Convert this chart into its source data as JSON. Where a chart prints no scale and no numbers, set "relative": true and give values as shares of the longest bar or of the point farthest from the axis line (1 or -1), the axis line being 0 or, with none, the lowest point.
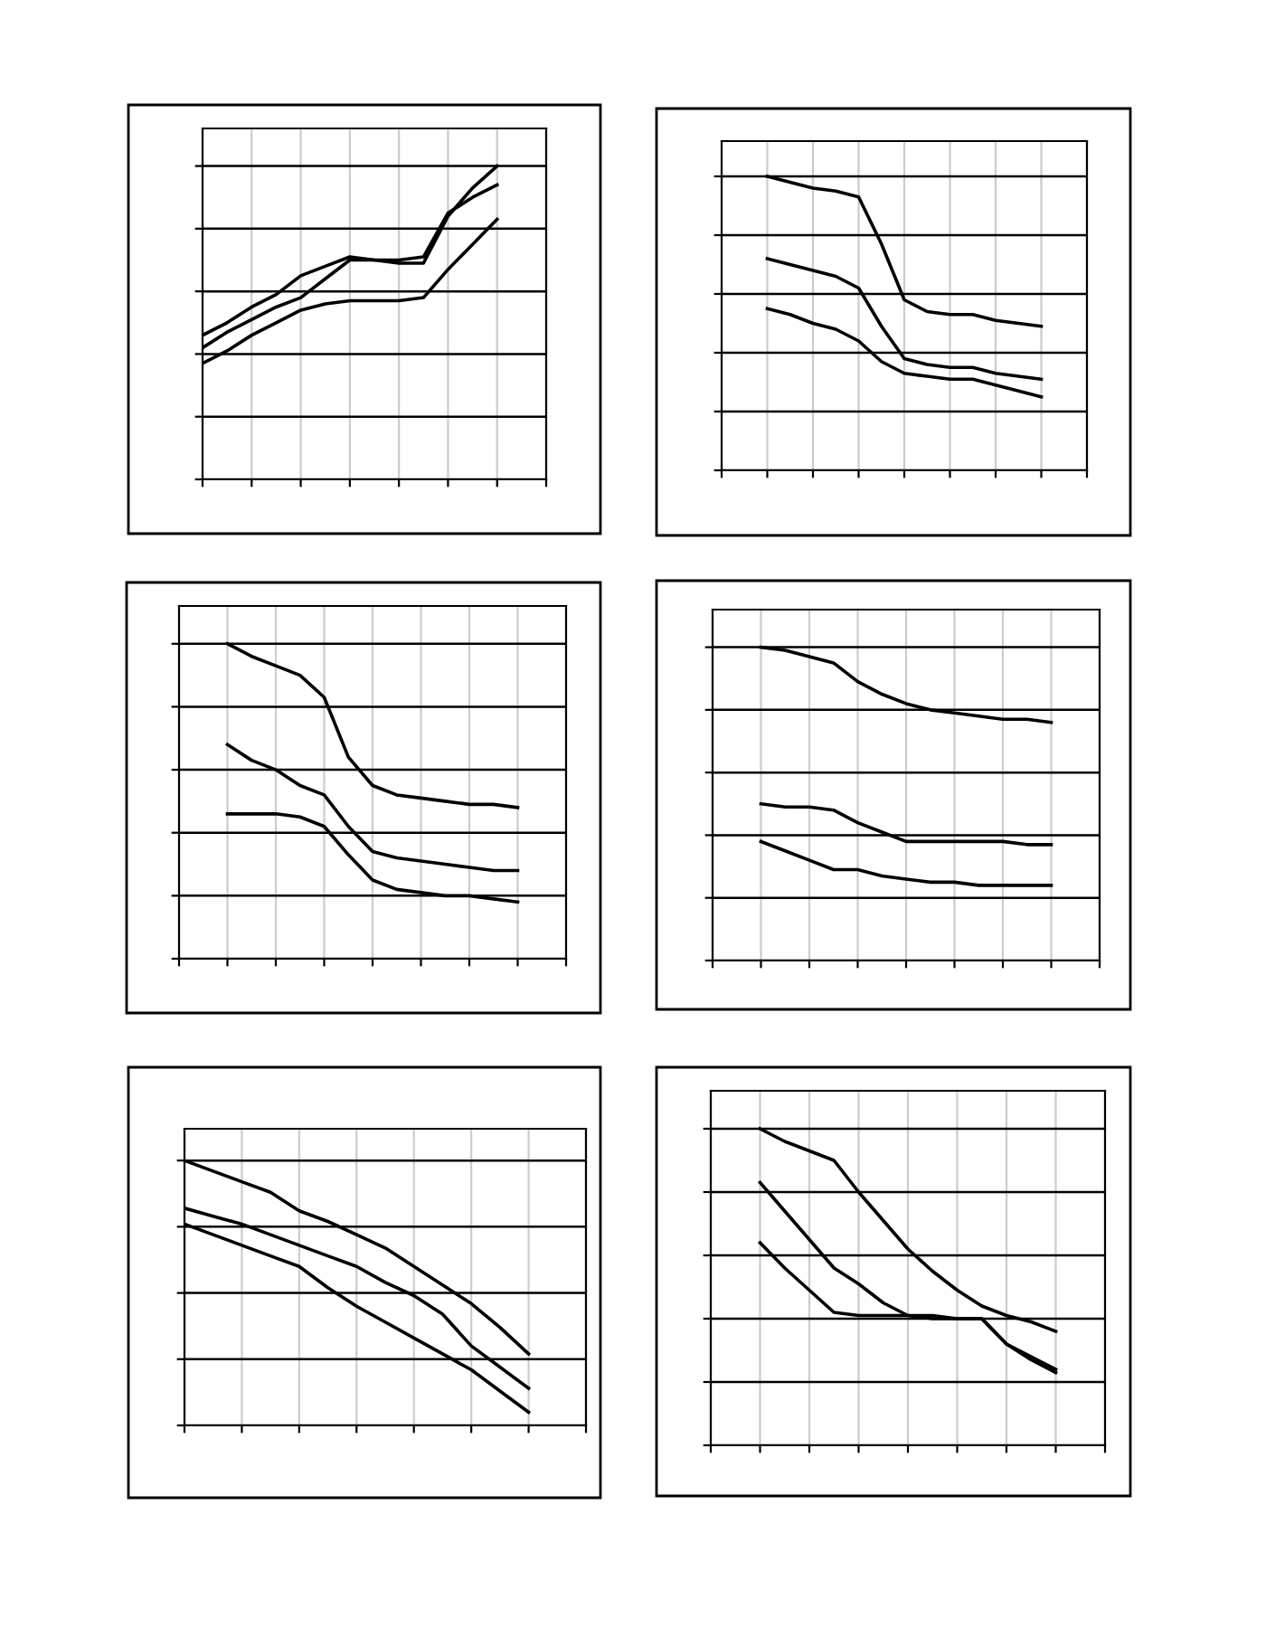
{
  "chart_data": [
    {
      "type": "line",
      "relative": true,
      "grid": true,
      "tick_labels": false,
      "categories": [
        null,
        null,
        null,
        null,
        null,
        null,
        null,
        null,
        null,
        null,
        null,
        null,
        null,
        null,
        null
      ],
      "series": [
        {
          "color": "#000000",
          "values": [
            0.46,
            0.5,
            0.55,
            0.59,
            0.65,
            0.68,
            0.71,
            0.7,
            0.7,
            0.71,
            0.85,
            0.9,
            0.94,
            null,
            null
          ]
        },
        {
          "color": "#000000",
          "values": [
            0.42,
            0.47,
            0.51,
            0.55,
            0.58,
            0.64,
            0.7,
            0.7,
            0.69,
            0.69,
            0.84,
            0.93,
            1.0,
            null,
            null
          ]
        },
        {
          "color": "#000000",
          "values": [
            0.37,
            0.41,
            0.46,
            0.5,
            0.54,
            0.56,
            0.57,
            0.57,
            0.57,
            0.58,
            0.67,
            0.75,
            0.83,
            null,
            null
          ]
        }
      ]
    },
    {
      "type": "line",
      "relative": true,
      "grid": true,
      "tick_labels": false,
      "categories": [
        null,
        null,
        null,
        null,
        null,
        null,
        null,
        null,
        null,
        null,
        null,
        null,
        null,
        null,
        null,
        null,
        null
      ],
      "series": [
        {
          "color": "#000000",
          "values": [
            null,
            null,
            1.0,
            0.98,
            0.96,
            0.95,
            0.93,
            0.77,
            0.58,
            0.54,
            0.53,
            0.53,
            0.51,
            0.5,
            0.49,
            null,
            null
          ]
        },
        {
          "color": "#000000",
          "values": [
            null,
            null,
            0.72,
            0.7,
            0.68,
            0.66,
            0.62,
            0.49,
            0.38,
            0.36,
            0.35,
            0.35,
            0.33,
            0.32,
            0.31,
            null,
            null
          ]
        },
        {
          "color": "#000000",
          "values": [
            null,
            null,
            0.55,
            0.53,
            0.5,
            0.48,
            0.44,
            0.37,
            0.33,
            0.32,
            0.31,
            0.31,
            0.29,
            0.27,
            0.25,
            null,
            null
          ]
        }
      ]
    },
    {
      "type": "line",
      "relative": true,
      "grid": true,
      "tick_labels": false,
      "categories": [
        null,
        null,
        null,
        null,
        null,
        null,
        null,
        null,
        null,
        null,
        null,
        null,
        null,
        null,
        null,
        null,
        null
      ],
      "series": [
        {
          "color": "#000000",
          "values": [
            null,
            null,
            1.0,
            0.96,
            0.93,
            0.9,
            0.83,
            0.64,
            0.55,
            0.52,
            0.51,
            0.5,
            0.49,
            0.49,
            0.48,
            null,
            null
          ]
        },
        {
          "color": "#000000",
          "values": [
            null,
            null,
            0.68,
            0.63,
            0.6,
            0.55,
            0.52,
            0.42,
            0.34,
            0.32,
            0.31,
            0.3,
            0.29,
            0.28,
            0.28,
            null,
            null
          ]
        },
        {
          "color": "#000000",
          "values": [
            null,
            null,
            0.46,
            0.46,
            0.46,
            0.45,
            0.42,
            0.33,
            0.25,
            0.22,
            0.21,
            0.2,
            0.2,
            0.19,
            0.18,
            null,
            null
          ]
        }
      ]
    },
    {
      "type": "line",
      "relative": true,
      "grid": true,
      "tick_labels": false,
      "categories": [
        null,
        null,
        null,
        null,
        null,
        null,
        null,
        null,
        null,
        null,
        null,
        null,
        null,
        null,
        null,
        null,
        null
      ],
      "series": [
        {
          "color": "#000000",
          "values": [
            null,
            null,
            1.0,
            0.99,
            0.97,
            0.95,
            0.89,
            0.85,
            0.82,
            0.8,
            0.79,
            0.78,
            0.77,
            0.77,
            0.76,
            null,
            null
          ]
        },
        {
          "color": "#000000",
          "values": [
            null,
            null,
            0.5,
            0.49,
            0.49,
            0.48,
            0.44,
            0.41,
            0.38,
            0.38,
            0.38,
            0.38,
            0.38,
            0.37,
            0.37,
            null,
            null
          ]
        },
        {
          "color": "#000000",
          "values": [
            null,
            null,
            0.38,
            0.35,
            0.32,
            0.29,
            0.29,
            0.27,
            0.26,
            0.25,
            0.25,
            0.24,
            0.24,
            0.24,
            0.24,
            null,
            null
          ]
        }
      ]
    },
    {
      "type": "line",
      "relative": true,
      "grid": true,
      "tick_labels": false,
      "categories": [
        null,
        null,
        null,
        null,
        null,
        null,
        null,
        null,
        null,
        null,
        null,
        null,
        null,
        null,
        null
      ],
      "series": [
        {
          "color": "#000000",
          "values": [
            1.0,
            0.96,
            0.92,
            0.88,
            0.81,
            0.77,
            0.72,
            0.67,
            0.6,
            0.53,
            0.46,
            0.37,
            0.27,
            null,
            null
          ]
        },
        {
          "color": "#000000",
          "values": [
            0.82,
            0.79,
            0.76,
            0.72,
            0.68,
            0.64,
            0.6,
            0.54,
            0.49,
            0.42,
            0.3,
            0.22,
            0.14,
            null,
            null
          ]
        },
        {
          "color": "#000000",
          "values": [
            0.76,
            0.72,
            0.68,
            0.64,
            0.6,
            0.52,
            0.45,
            0.39,
            0.33,
            0.27,
            0.21,
            0.13,
            0.05,
            null,
            null
          ]
        }
      ]
    },
    {
      "type": "line",
      "relative": true,
      "grid": true,
      "tick_labels": false,
      "categories": [
        null,
        null,
        null,
        null,
        null,
        null,
        null,
        null,
        null,
        null,
        null,
        null,
        null,
        null,
        null,
        null,
        null
      ],
      "series": [
        {
          "color": "#000000",
          "values": [
            null,
            null,
            1.0,
            0.96,
            0.93,
            0.9,
            0.8,
            0.71,
            0.62,
            0.55,
            0.49,
            0.44,
            0.41,
            0.39,
            0.36,
            null,
            null
          ]
        },
        {
          "color": "#000000",
          "values": [
            null,
            null,
            0.83,
            0.74,
            0.65,
            0.56,
            0.51,
            0.45,
            0.41,
            0.41,
            0.4,
            0.4,
            0.32,
            0.28,
            0.24,
            null,
            null
          ]
        },
        {
          "color": "#000000",
          "values": [
            null,
            null,
            0.64,
            0.56,
            0.49,
            0.42,
            0.41,
            0.41,
            0.41,
            0.4,
            0.4,
            0.4,
            0.32,
            0.27,
            0.23,
            null,
            null
          ]
        }
      ]
    }
  ]
}
